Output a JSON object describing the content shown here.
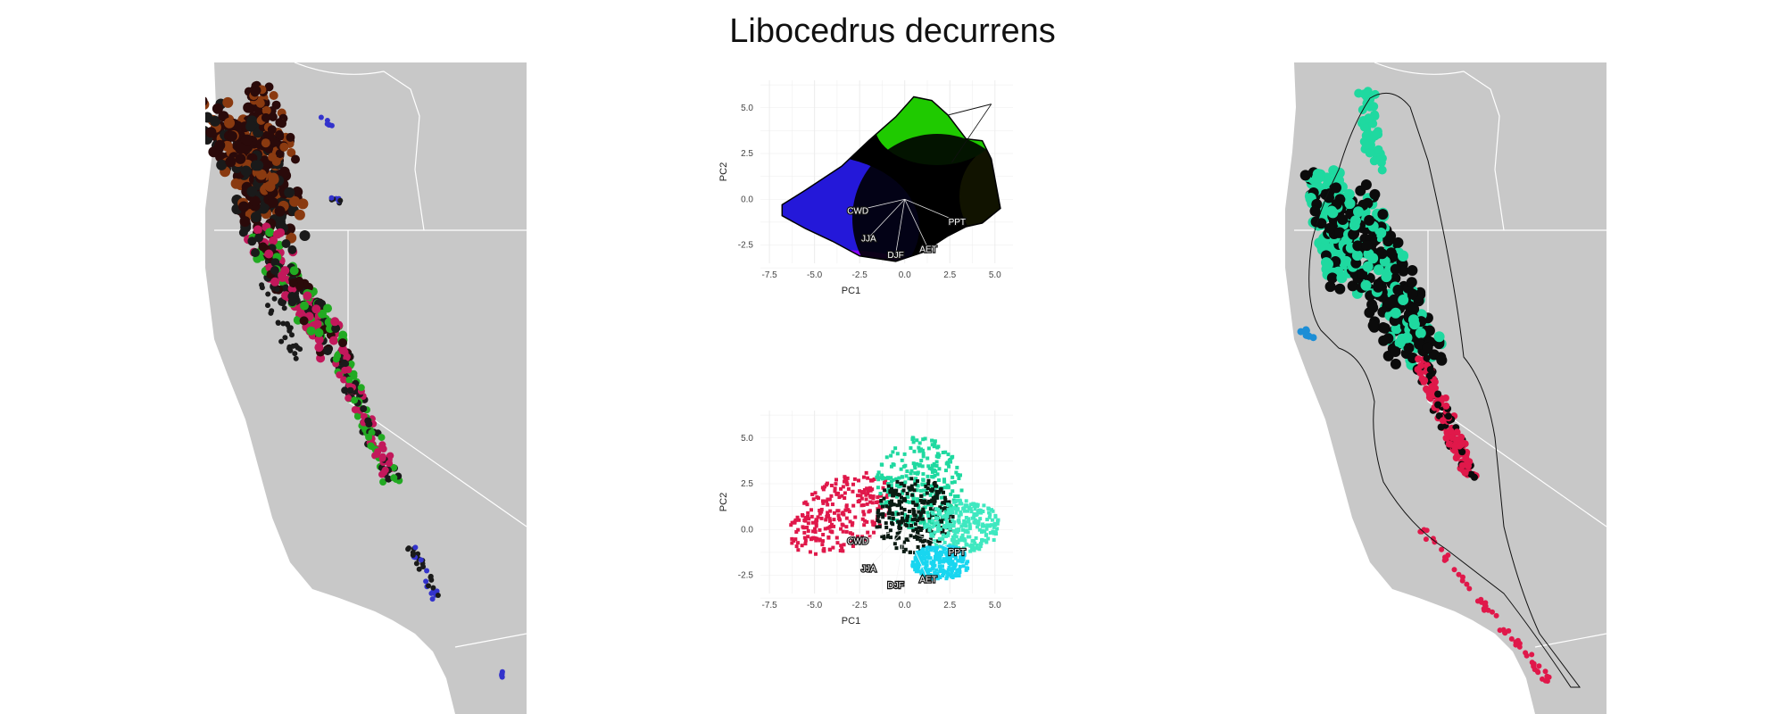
{
  "title": "Libocedrus decurrens",
  "colors": {
    "land": "#c8c8c8",
    "border": "#ffffff",
    "grid": "#ececec",
    "teal": "#1fd9a0",
    "crimson": "#e0184a"
  },
  "chart_data": [
    {
      "id": "map-left",
      "type": "map",
      "description_colors": [
        "#2a0a0a",
        "#8a3a10",
        "#c2185b",
        "#1a1a1a",
        "#22aa22",
        "#3333cc"
      ]
    },
    {
      "id": "pca-gradient",
      "type": "scatter",
      "xlabel": "PC1",
      "ylabel": "PC2",
      "xlim": [
        -8,
        6
      ],
      "ylim": [
        -3.5,
        6.5
      ],
      "xticks": [
        -7.5,
        -5.0,
        -2.5,
        0.0,
        2.5,
        5.0
      ],
      "yticks": [
        -2.5,
        0.0,
        2.5,
        5.0
      ],
      "xtick_labels": [
        "-7.5",
        "-5.0",
        "-2.5",
        "0.0",
        "2.5",
        "5.0"
      ],
      "ytick_labels": [
        "-2.5",
        "0.0",
        "2.5",
        "5.0"
      ],
      "grid": true,
      "vectors": [
        {
          "label": "CWD",
          "x": -2.6,
          "y": -0.6
        },
        {
          "label": "JJA",
          "x": -2.0,
          "y": -2.1
        },
        {
          "label": "DJF",
          "x": -0.5,
          "y": -3.0
        },
        {
          "label": "AET",
          "x": 1.3,
          "y": -2.7
        },
        {
          "label": "PPT",
          "x": 2.9,
          "y": -1.2
        }
      ],
      "hull": [
        [
          -6.8,
          -0.3
        ],
        [
          -5.5,
          0.5
        ],
        [
          -3.5,
          1.8
        ],
        [
          -2,
          3.2
        ],
        [
          -0.5,
          4.5
        ],
        [
          0.5,
          5.6
        ],
        [
          1.5,
          5.4
        ],
        [
          2.4,
          4.6
        ],
        [
          3.4,
          3.3
        ],
        [
          4.3,
          3.2
        ],
        [
          4.8,
          2.2
        ],
        [
          5.3,
          -0.5
        ],
        [
          4.3,
          -1.3
        ],
        [
          3.4,
          -1.5
        ],
        [
          2.4,
          -2
        ],
        [
          1,
          -2.9
        ],
        [
          -0.5,
          -3.4
        ],
        [
          -2.5,
          -3.1
        ],
        [
          -4,
          -2.3
        ],
        [
          -5.5,
          -1.6
        ],
        [
          -6.8,
          -0.9
        ]
      ]
    },
    {
      "id": "pca-clusters",
      "type": "scatter",
      "xlabel": "PC1",
      "ylabel": "PC2",
      "xlim": [
        -8,
        6
      ],
      "ylim": [
        -3.5,
        6.5
      ],
      "xticks": [
        -7.5,
        -5.0,
        -2.5,
        0.0,
        2.5,
        5.0
      ],
      "yticks": [
        -2.5,
        0.0,
        2.5,
        5.0
      ],
      "xtick_labels": [
        "-7.5",
        "-5.0",
        "-2.5",
        "0.0",
        "2.5",
        "5.0"
      ],
      "ytick_labels": [
        "-2.5",
        "0.0",
        "2.5",
        "5.0"
      ],
      "grid": true,
      "series": [
        {
          "color": "#e0184a",
          "center": [
            -3.5,
            0.8
          ]
        },
        {
          "color": "#1fd9a0",
          "center": [
            0.8,
            2.5
          ]
        },
        {
          "color": "#0a1a12",
          "center": [
            0.5,
            0.8
          ]
        },
        {
          "color": "#3fe8c0",
          "center": [
            3.2,
            0.2
          ]
        },
        {
          "color": "#19d6f0",
          "center": [
            2.0,
            -1.8
          ]
        }
      ],
      "vectors": [
        {
          "label": "CWD",
          "x": -2.6,
          "y": -0.6
        },
        {
          "label": "JJA",
          "x": -2.0,
          "y": -2.1
        },
        {
          "label": "DJF",
          "x": -0.5,
          "y": -3.0
        },
        {
          "label": "AET",
          "x": 1.3,
          "y": -2.7
        },
        {
          "label": "PPT",
          "x": 2.9,
          "y": -1.2
        }
      ]
    },
    {
      "id": "map-right",
      "type": "map",
      "description_colors": [
        "#1fd9a0",
        "#0b0b0b",
        "#e0184a",
        "#1c8ed6"
      ]
    }
  ]
}
